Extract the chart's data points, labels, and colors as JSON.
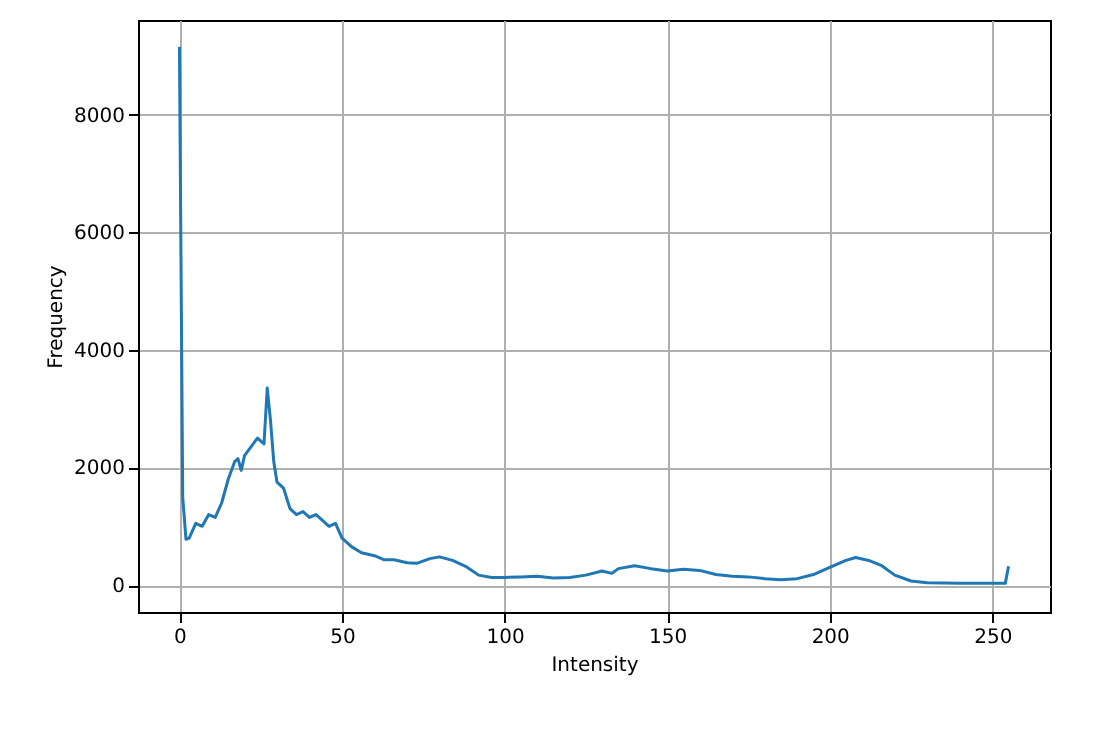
{
  "chart_data": {
    "type": "line",
    "xlabel": "Intensity",
    "ylabel": "Frequency",
    "xlim": [
      -12.75,
      267.75
    ],
    "xticks": [
      0,
      50,
      100,
      150,
      200,
      250
    ],
    "ylim": [
      -457,
      9607
    ],
    "yticks": [
      0,
      2000,
      4000,
      6000,
      8000
    ],
    "grid": true,
    "series": [
      {
        "color": "#1f77b4",
        "x": [
          0,
          1,
          2,
          3,
          5,
          7,
          9,
          11,
          13,
          15,
          17,
          18,
          19,
          20,
          22,
          24,
          26,
          27,
          28,
          29,
          30,
          32,
          34,
          36,
          38,
          40,
          42,
          44,
          46,
          48,
          50,
          53,
          56,
          60,
          63,
          66,
          70,
          73,
          77,
          80,
          84,
          88,
          92,
          96,
          100,
          105,
          110,
          115,
          120,
          125,
          130,
          133,
          135,
          140,
          145,
          150,
          155,
          160,
          165,
          170,
          175,
          180,
          185,
          190,
          195,
          200,
          205,
          208,
          212,
          216,
          220,
          225,
          230,
          240,
          250,
          254,
          255
        ],
        "values": [
          9150,
          1500,
          780,
          800,
          1050,
          1000,
          1200,
          1150,
          1400,
          1800,
          2100,
          2150,
          1950,
          2200,
          2350,
          2500,
          2400,
          3350,
          2800,
          2100,
          1750,
          1650,
          1300,
          1200,
          1250,
          1150,
          1200,
          1100,
          1000,
          1050,
          800,
          650,
          550,
          500,
          430,
          430,
          380,
          370,
          450,
          480,
          420,
          320,
          170,
          130,
          130,
          140,
          150,
          120,
          130,
          170,
          240,
          200,
          280,
          330,
          280,
          240,
          270,
          250,
          180,
          150,
          140,
          110,
          90,
          110,
          180,
          300,
          420,
          470,
          420,
          330,
          170,
          70,
          40,
          30,
          30,
          30,
          320
        ]
      }
    ]
  }
}
